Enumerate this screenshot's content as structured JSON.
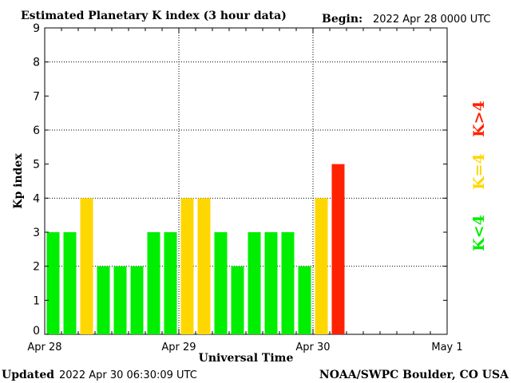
{
  "header": {
    "title": "Estimated Planetary K index (3 hour data)",
    "begin_label": "Begin:",
    "begin_value": "2022 Apr 28 0000 UTC"
  },
  "footer": {
    "updated_label": "Updated",
    "updated_value": "2022 Apr 30 06:30:09 UTC",
    "source": "NOAA/SWPC Boulder, CO USA"
  },
  "legend": {
    "green": "K<4",
    "yellow": "K=4",
    "red": "K>4"
  },
  "colors": {
    "green": "#00ee00",
    "yellow": "#ffd700",
    "red": "#ff2200"
  },
  "chart_data": {
    "type": "bar",
    "title": "Estimated Planetary K index (3 hour data)",
    "xlabel": "Universal Time",
    "ylabel": "Kp index",
    "ylim": [
      0,
      9
    ],
    "yticks": [
      0,
      1,
      2,
      3,
      4,
      5,
      6,
      7,
      8,
      9
    ],
    "xticks": [
      "Apr 28",
      "Apr 29",
      "Apr 30",
      "May 1"
    ],
    "slots_per_day": 8,
    "days": 3,
    "grid": true,
    "values": [
      3,
      3,
      4,
      2,
      2,
      2,
      3,
      3,
      4,
      4,
      3,
      2,
      3,
      3,
      3,
      2,
      4,
      5
    ]
  }
}
